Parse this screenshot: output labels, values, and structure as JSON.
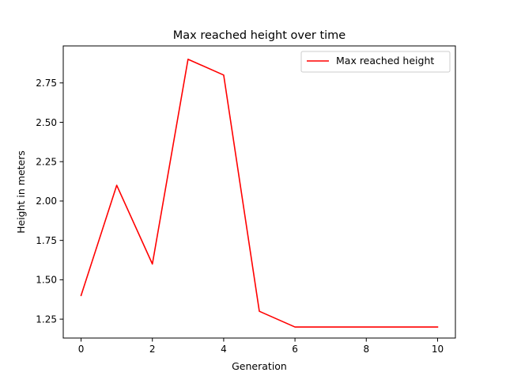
{
  "chart_data": {
    "type": "line",
    "title": "Max reached height over time",
    "xlabel": "Generation",
    "ylabel": "Height in meters",
    "xlim": [
      -0.5,
      10.5
    ],
    "ylim": [
      1.13,
      2.985
    ],
    "xticks": [
      0,
      2,
      4,
      6,
      8,
      10
    ],
    "xtick_labels": [
      "0",
      "2",
      "4",
      "6",
      "8",
      "10"
    ],
    "yticks": [
      1.25,
      1.5,
      1.75,
      2.0,
      2.25,
      2.5,
      2.75
    ],
    "ytick_labels": [
      "1.25",
      "1.50",
      "1.75",
      "2.00",
      "2.25",
      "2.50",
      "2.75"
    ],
    "grid": false,
    "legend_position": "top-right",
    "series": [
      {
        "name": "Max reached height",
        "color": "#ff0000",
        "x": [
          0,
          1,
          2,
          3,
          4,
          5,
          6,
          7,
          8,
          9,
          10
        ],
        "y": [
          1.4,
          2.1,
          1.6,
          2.9,
          2.8,
          1.3,
          1.2,
          1.2,
          1.2,
          1.2,
          1.2
        ]
      }
    ]
  }
}
